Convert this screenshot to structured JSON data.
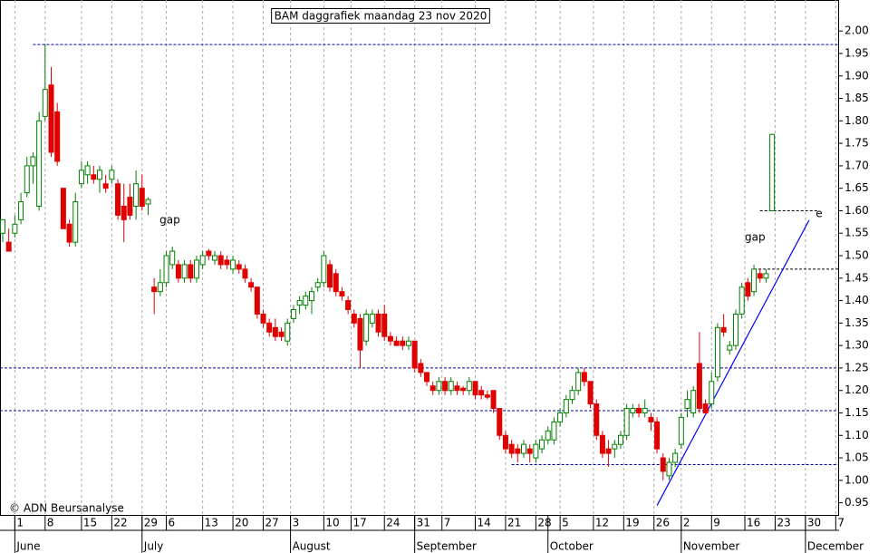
{
  "chart_data": {
    "type": "candlestick",
    "title": "BAM daggrafiek maandag 23 nov 2020",
    "credit": "© ADN Beursanalyse",
    "up_color": "#008000",
    "down_color": "#e00000",
    "xlim": [
      -0.45,
      137.9
    ],
    "ylim": [
      0.923,
      2.069
    ],
    "yticks": [
      0.95,
      {
        "value": 1,
        "label": "1.00"
      },
      1.05,
      {
        "value": 1.1,
        "label": "1.10"
      },
      1.15,
      {
        "value": 1.2,
        "label": "1.20"
      },
      1.25,
      {
        "value": 1.3,
        "label": "1.30"
      },
      1.35,
      {
        "value": 1.4,
        "label": "1.40"
      },
      1.45,
      {
        "value": 1.5,
        "label": "1.50"
      },
      1.55,
      {
        "value": 1.6,
        "label": "1.60"
      },
      1.65,
      {
        "value": 1.7,
        "label": "1.70"
      },
      1.75,
      {
        "value": 1.8,
        "label": "1.80"
      },
      1.85,
      {
        "value": 1.9,
        "label": "1.90"
      },
      1.95,
      {
        "value": 2,
        "label": "2.00"
      }
    ],
    "xticks": [
      {
        "value": 2,
        "label": "1"
      },
      {
        "value": 7,
        "label": "8"
      },
      {
        "value": 13,
        "label": "15"
      },
      {
        "value": 18,
        "label": "22"
      },
      {
        "value": 23,
        "label": "29"
      },
      {
        "value": 27,
        "label": "6"
      },
      {
        "value": 33,
        "label": "13"
      },
      {
        "value": 38,
        "label": "20"
      },
      {
        "value": 43,
        "label": "27"
      },
      {
        "value": 47.5,
        "label": "3"
      },
      {
        "value": 53,
        "label": "10"
      },
      {
        "value": 57.5,
        "label": "17"
      },
      {
        "value": 63,
        "label": "24"
      },
      {
        "value": 68,
        "label": "31"
      },
      {
        "value": 72.5,
        "label": "7"
      },
      {
        "value": 78,
        "label": "14"
      },
      {
        "value": 83,
        "label": "21"
      },
      {
        "value": 88,
        "label": "28"
      },
      {
        "value": 92,
        "label": "5"
      },
      {
        "value": 97.5,
        "label": "12"
      },
      {
        "value": 102.5,
        "label": "19"
      },
      {
        "value": 107.5,
        "label": "26"
      },
      {
        "value": 112,
        "label": "2"
      },
      {
        "value": 117,
        "label": "9"
      },
      {
        "value": 122.5,
        "label": "16"
      },
      {
        "value": 127.5,
        "label": "23"
      },
      {
        "value": 132.5,
        "label": "30"
      },
      {
        "value": 137.5,
        "label": "7"
      }
    ],
    "months": [
      {
        "value": 2,
        "label": "June"
      },
      {
        "value": 23,
        "label": "July"
      },
      {
        "value": 47.5,
        "label": "August"
      },
      {
        "value": 68,
        "label": "September"
      },
      {
        "value": 90,
        "label": "October"
      },
      {
        "value": 112,
        "label": "November"
      },
      {
        "value": 132.5,
        "label": "December"
      }
    ],
    "x": [
      0,
      1,
      2,
      3,
      4,
      5,
      6,
      7,
      8,
      9,
      10,
      11,
      12,
      13,
      14,
      15,
      16,
      17,
      18,
      19,
      20,
      21,
      22,
      23,
      24,
      25,
      26,
      27,
      28,
      29,
      30,
      31,
      32,
      33,
      34,
      35,
      36,
      37,
      38,
      39,
      40,
      41,
      42,
      43,
      44,
      45,
      46,
      47,
      48,
      49,
      50,
      51,
      52,
      53,
      54,
      55,
      56,
      57,
      58,
      59,
      60,
      61,
      62,
      63,
      64,
      65,
      66,
      67,
      68,
      69,
      70,
      71,
      72,
      73,
      74,
      75,
      76,
      77,
      78,
      79,
      80,
      81,
      82,
      83,
      84,
      85,
      86,
      87,
      88,
      89,
      90,
      91,
      92,
      93,
      94,
      95,
      96,
      97,
      98,
      99,
      100,
      101,
      102,
      103,
      104,
      105,
      106,
      107,
      108,
      109,
      110,
      111,
      112,
      113,
      114,
      115,
      116,
      117,
      118,
      119,
      120,
      121,
      122,
      123,
      124,
      125,
      126,
      127
    ],
    "open": [
      1.55,
      1.53,
      1.55,
      1.58,
      1.64,
      1.7,
      1.61,
      1.81,
      1.88,
      1.82,
      1.65,
      1.57,
      1.53,
      1.66,
      1.68,
      1.68,
      1.67,
      1.66,
      1.67,
      1.66,
      1.61,
      1.63,
      1.61,
      1.65,
      1.615,
      1.43,
      1.42,
      1.44,
      1.48,
      1.48,
      1.45,
      1.48,
      1.45,
      1.48,
      1.51,
      1.49,
      1.5,
      1.49,
      1.47,
      1.48,
      1.47,
      1.44,
      1.43,
      1.37,
      1.35,
      1.34,
      1.33,
      1.31,
      1.36,
      1.39,
      1.39,
      1.4,
      1.43,
      1.44,
      1.48,
      1.46,
      1.42,
      1.4,
      1.37,
      1.36,
      1.31,
      1.35,
      1.37,
      1.37,
      1.32,
      1.31,
      1.31,
      1.3,
      1.31,
      1.26,
      1.24,
      1.21,
      1.2,
      1.22,
      1.2,
      1.21,
      1.205,
      1.2,
      1.22,
      1.2,
      1.19,
      1.2,
      1.16,
      1.1,
      1.08,
      1.07,
      1.06,
      1.07,
      1.05,
      1.07,
      1.09,
      1.09,
      1.13,
      1.15,
      1.18,
      1.2,
      1.24,
      1.22,
      1.17,
      1.1,
      1.07,
      1.07,
      1.08,
      1.1,
      1.15,
      1.16,
      1.15,
      1.14,
      1.13,
      1.05,
      1.01,
      1.04,
      1.08,
      1.16,
      1.15,
      1.26,
      1.17,
      1.17,
      1.23,
      1.34,
      1.29,
      1.3,
      1.37,
      1.44,
      1.42,
      1.46,
      1.45,
      1.6
    ],
    "high": [
      1.58,
      1.56,
      1.59,
      1.64,
      1.72,
      1.73,
      1.82,
      1.97,
      1.92,
      1.84,
      1.65,
      1.58,
      1.64,
      1.71,
      1.71,
      1.7,
      1.7,
      1.68,
      1.7,
      1.67,
      1.66,
      1.66,
      1.69,
      1.68,
      1.63,
      1.45,
      1.47,
      1.51,
      1.52,
      1.49,
      1.49,
      1.49,
      1.5,
      1.51,
      1.515,
      1.51,
      1.51,
      1.5,
      1.5,
      1.49,
      1.48,
      1.45,
      1.43,
      1.38,
      1.36,
      1.36,
      1.34,
      1.36,
      1.39,
      1.41,
      1.42,
      1.43,
      1.45,
      1.51,
      1.49,
      1.47,
      1.43,
      1.41,
      1.38,
      1.37,
      1.38,
      1.38,
      1.38,
      1.39,
      1.33,
      1.32,
      1.32,
      1.32,
      1.31,
      1.27,
      1.24,
      1.22,
      1.23,
      1.23,
      1.23,
      1.22,
      1.21,
      1.23,
      1.22,
      1.21,
      1.2,
      1.2,
      1.16,
      1.11,
      1.09,
      1.08,
      1.09,
      1.08,
      1.09,
      1.1,
      1.12,
      1.14,
      1.16,
      1.19,
      1.21,
      1.25,
      1.25,
      1.22,
      1.18,
      1.11,
      1.09,
      1.09,
      1.11,
      1.17,
      1.17,
      1.17,
      1.18,
      1.15,
      1.14,
      1.06,
      1.05,
      1.07,
      1.15,
      1.2,
      1.21,
      1.33,
      1.18,
      1.24,
      1.35,
      1.37,
      1.31,
      1.38,
      1.44,
      1.45,
      1.48,
      1.47,
      1.47,
      1.77
    ],
    "low": [
      1.53,
      1.51,
      1.54,
      1.57,
      1.63,
      1.66,
      1.6,
      1.8,
      1.72,
      1.7,
      1.56,
      1.52,
      1.52,
      1.65,
      1.66,
      1.66,
      1.64,
      1.64,
      1.66,
      1.58,
      1.53,
      1.58,
      1.58,
      1.6,
      1.59,
      1.37,
      1.41,
      1.43,
      1.47,
      1.44,
      1.44,
      1.44,
      1.44,
      1.47,
      1.49,
      1.48,
      1.47,
      1.47,
      1.46,
      1.46,
      1.44,
      1.42,
      1.36,
      1.34,
      1.32,
      1.31,
      1.31,
      1.3,
      1.35,
      1.37,
      1.38,
      1.37,
      1.42,
      1.43,
      1.42,
      1.41,
      1.4,
      1.37,
      1.34,
      1.25,
      1.3,
      1.34,
      1.32,
      1.31,
      1.3,
      1.3,
      1.29,
      1.29,
      1.24,
      1.23,
      1.21,
      1.19,
      1.19,
      1.19,
      1.19,
      1.19,
      1.19,
      1.19,
      1.18,
      1.18,
      1.18,
      1.15,
      1.09,
      1.06,
      1.05,
      1.04,
      1.05,
      1.04,
      1.04,
      1.06,
      1.08,
      1.08,
      1.12,
      1.14,
      1.17,
      1.19,
      1.21,
      1.16,
      1.09,
      1.05,
      1.03,
      1.05,
      1.07,
      1.09,
      1.14,
      1.14,
      1.14,
      1.11,
      1.06,
      1.0,
      1.0,
      1.03,
      1.07,
      1.14,
      1.14,
      1.15,
      1.15,
      1.16,
      1.22,
      1.32,
      1.28,
      1.29,
      1.36,
      1.4,
      1.41,
      1.44,
      1.44,
      1.6
    ],
    "close": [
      1.58,
      1.51,
      1.57,
      1.62,
      1.7,
      1.72,
      1.8,
      1.87,
      1.73,
      1.71,
      1.56,
      1.53,
      1.62,
      1.69,
      1.7,
      1.67,
      1.69,
      1.65,
      1.69,
      1.59,
      1.58,
      1.59,
      1.66,
      1.61,
      1.625,
      1.42,
      1.44,
      1.5,
      1.51,
      1.45,
      1.48,
      1.45,
      1.49,
      1.5,
      1.5,
      1.5,
      1.48,
      1.48,
      1.49,
      1.47,
      1.45,
      1.43,
      1.37,
      1.35,
      1.33,
      1.32,
      1.32,
      1.35,
      1.38,
      1.4,
      1.41,
      1.42,
      1.44,
      1.5,
      1.43,
      1.42,
      1.41,
      1.38,
      1.35,
      1.29,
      1.37,
      1.37,
      1.33,
      1.32,
      1.31,
      1.3,
      1.3,
      1.31,
      1.25,
      1.24,
      1.22,
      1.2,
      1.22,
      1.2,
      1.22,
      1.2,
      1.2,
      1.22,
      1.19,
      1.19,
      1.185,
      1.16,
      1.1,
      1.07,
      1.06,
      1.06,
      1.08,
      1.06,
      1.08,
      1.09,
      1.11,
      1.13,
      1.15,
      1.18,
      1.2,
      1.24,
      1.22,
      1.17,
      1.1,
      1.06,
      1.06,
      1.08,
      1.1,
      1.16,
      1.16,
      1.15,
      1.16,
      1.13,
      1.07,
      1.02,
      1.04,
      1.06,
      1.14,
      1.18,
      1.2,
      1.16,
      1.15,
      1.22,
      1.34,
      1.33,
      1.3,
      1.37,
      1.43,
      1.41,
      1.47,
      1.45,
      1.46,
      1.77
    ],
    "hlines": [
      {
        "y": 1.97,
        "x": [
          5,
          137.9
        ],
        "color": "#0000a0"
      },
      {
        "y": 1.25,
        "x": [
          -0.45,
          137.9
        ],
        "color": "#0000a0"
      },
      {
        "y": 1.155,
        "x": [
          -0.45,
          137.9
        ],
        "color": "#0000a0"
      },
      {
        "y": 1.035,
        "x": [
          84,
          137.9
        ],
        "color": "#0000a0"
      },
      {
        "y": 1.6,
        "x": [
          125,
          134.5
        ],
        "color": "#000000"
      },
      {
        "y": 1.47,
        "x": [
          124,
          137.9
        ],
        "color": "#000000"
      }
    ],
    "trendline": {
      "x": [
        108,
        133.1
      ],
      "y": [
        0.944,
        1.579
      ],
      "color": "#0000ff"
    },
    "annotations": [
      {
        "text": "gap",
        "x": 25.9,
        "y": 1.579,
        "color": "#000000"
      },
      {
        "text": "gap",
        "x": 122.5,
        "y": 1.54,
        "color": "#000000"
      },
      {
        "text": "e",
        "x": 134.2,
        "y": 1.593,
        "color": "#0000ff"
      }
    ]
  }
}
